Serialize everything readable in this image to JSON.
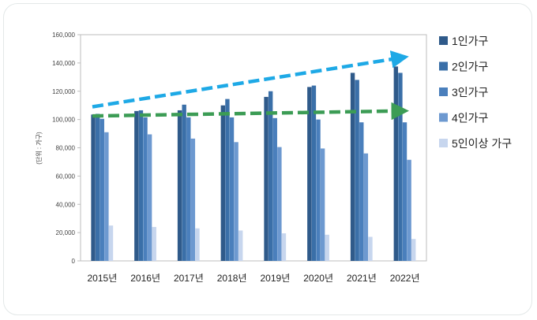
{
  "chart_data": {
    "type": "bar",
    "title": "",
    "xlabel": "",
    "ylabel": "(단위 : 가구)",
    "ylim": [
      0,
      160000
    ],
    "ytick_values": [
      0,
      20000,
      40000,
      60000,
      80000,
      100000,
      120000,
      140000,
      160000
    ],
    "ytick_labels": [
      "0",
      "20,000",
      "40,000",
      "60,000",
      "80,000",
      "100,000",
      "120,000",
      "140,000",
      "160,000"
    ],
    "categories": [
      "2015년",
      "2016년",
      "2017년",
      "2018년",
      "2019년",
      "2020년",
      "2021년",
      "2022년"
    ],
    "legend_position": "right",
    "grid": false,
    "series": [
      {
        "name": "1인가구",
        "color": "#2f5a8a",
        "values": [
          103500,
          106000,
          106500,
          110000,
          116000,
          123000,
          133000,
          137500
        ]
      },
      {
        "name": "2인가구",
        "color": "#3a6fa8",
        "values": [
          104000,
          106500,
          110500,
          114500,
          120000,
          124000,
          128000,
          133000
        ]
      },
      {
        "name": "3인가구",
        "color": "#4a7fbc",
        "values": [
          100500,
          101500,
          101500,
          101500,
          101000,
          100000,
          98000,
          98000
        ]
      },
      {
        "name": "4인가구",
        "color": "#6d99d0",
        "values": [
          91000,
          89500,
          86500,
          84000,
          80500,
          79500,
          76000,
          71500
        ]
      },
      {
        "name": "5인이상 가구",
        "color": "#c7d6ee",
        "values": [
          25000,
          24000,
          23000,
          21500,
          19500,
          18500,
          17000,
          15500
        ]
      }
    ],
    "trend_arrows": [
      {
        "color": "#1ea9e6",
        "start_value": 109000,
        "end_value": 143000
      },
      {
        "color": "#3c9c55",
        "start_value": 102500,
        "end_value": 106000
      }
    ]
  }
}
